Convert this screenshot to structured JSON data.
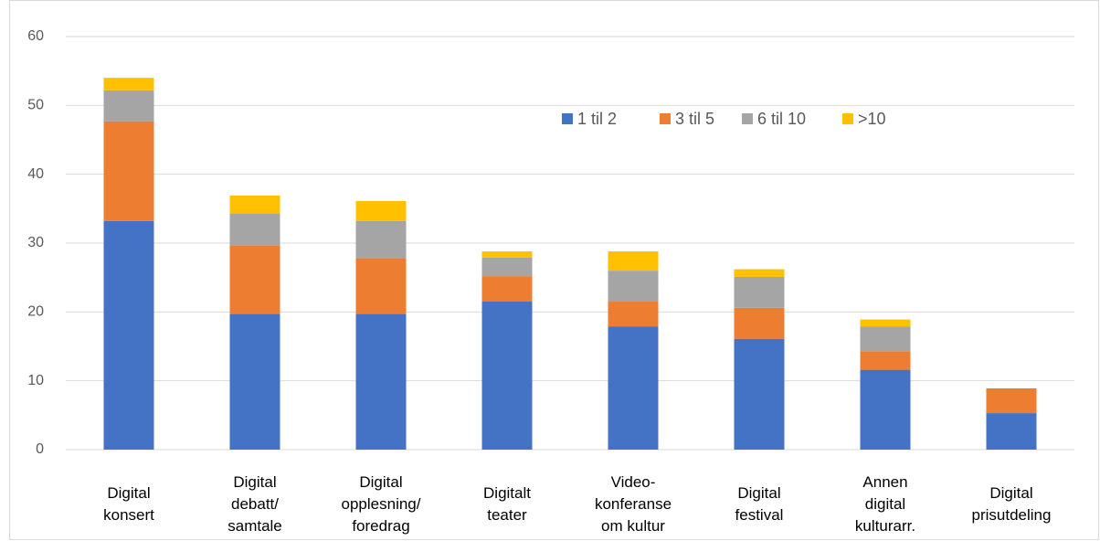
{
  "chart_data": {
    "type": "stacked_bar",
    "categories": [
      "Digital\nkonsert",
      "Digital\ndebatt/\nsamtale",
      "Digital\nopplesning/\nforedrag",
      "Digitalt\nteater",
      "Video-\nkonferanse\nom kultur",
      "Digital\nfestival",
      "Annen\ndigital\nkulturarr.",
      "Digital\nprisutdeling"
    ],
    "series": [
      {
        "name": "1 til 2",
        "color": "#4472c4",
        "values": [
          33.2,
          19.7,
          19.7,
          21.5,
          17.9,
          16.1,
          11.6,
          5.3
        ]
      },
      {
        "name": "3 til 5",
        "color": "#ed7d31",
        "values": [
          14.5,
          10.0,
          8.1,
          3.7,
          3.6,
          4.5,
          2.7,
          3.6
        ]
      },
      {
        "name": "6 til 10",
        "color": "#a5a5a5",
        "values": [
          4.5,
          4.6,
          5.4,
          2.7,
          4.5,
          4.5,
          3.6,
          0
        ]
      },
      {
        "name": ">10",
        "color": "#ffc000",
        "values": [
          1.8,
          2.6,
          2.9,
          0.9,
          2.8,
          1.1,
          1.0,
          0
        ]
      }
    ],
    "ylim": [
      0,
      60
    ],
    "yticks": [
      0,
      10,
      20,
      30,
      40,
      50,
      60
    ],
    "grid": true,
    "legend": "upper right"
  }
}
